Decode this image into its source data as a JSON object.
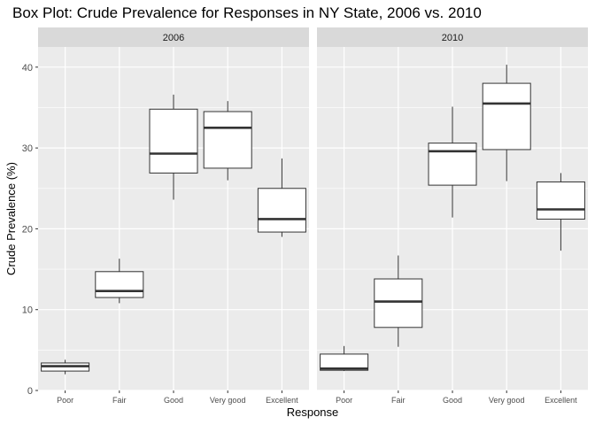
{
  "chart_data": {
    "type": "boxplot",
    "title": "Box Plot: Crude Prevalence for Responses in NY State, 2006 vs. 2010",
    "xlabel": "Response",
    "ylabel": "Crude Prevalence (%)",
    "ylim": [
      0,
      42.5
    ],
    "yticks": [
      0,
      10,
      20,
      30,
      40
    ],
    "categories": [
      "Poor",
      "Fair",
      "Good",
      "Very good",
      "Excellent"
    ],
    "grid": true,
    "legend": "none",
    "facets": [
      {
        "label": "2006",
        "boxes": [
          {
            "category": "Poor",
            "min": 2.0,
            "q1": 2.4,
            "median": 3.0,
            "q3": 3.4,
            "max": 3.8
          },
          {
            "category": "Fair",
            "min": 10.8,
            "q1": 11.5,
            "median": 12.3,
            "q3": 14.7,
            "max": 16.3
          },
          {
            "category": "Good",
            "min": 23.6,
            "q1": 26.9,
            "median": 29.3,
            "q3": 34.8,
            "max": 36.6
          },
          {
            "category": "Very good",
            "min": 26.0,
            "q1": 27.5,
            "median": 32.5,
            "q3": 34.5,
            "max": 35.8
          },
          {
            "category": "Excellent",
            "min": 19.0,
            "q1": 19.6,
            "median": 21.2,
            "q3": 25.0,
            "max": 28.7
          }
        ]
      },
      {
        "label": "2010",
        "boxes": [
          {
            "category": "Poor",
            "min": 2.4,
            "q1": 2.5,
            "median": 2.7,
            "q3": 4.5,
            "max": 5.5
          },
          {
            "category": "Fair",
            "min": 5.4,
            "q1": 7.8,
            "median": 11.0,
            "q3": 13.8,
            "max": 16.7
          },
          {
            "category": "Good",
            "min": 21.4,
            "q1": 25.4,
            "median": 29.6,
            "q3": 30.6,
            "max": 35.1
          },
          {
            "category": "Very good",
            "min": 25.9,
            "q1": 29.8,
            "median": 35.5,
            "q3": 38.0,
            "max": 40.3
          },
          {
            "category": "Excellent",
            "min": 17.3,
            "q1": 21.2,
            "median": 22.4,
            "q3": 25.8,
            "max": 26.9
          }
        ]
      }
    ],
    "colors": {
      "panel_bg": "#EBEBEB",
      "strip_bg": "#D9D9D9",
      "grid": "#FFFFFF",
      "box_fill": "#FFFFFF",
      "box_stroke": "#333333",
      "median_stroke": "#333333",
      "tick_text": "#4D4D4D"
    }
  }
}
